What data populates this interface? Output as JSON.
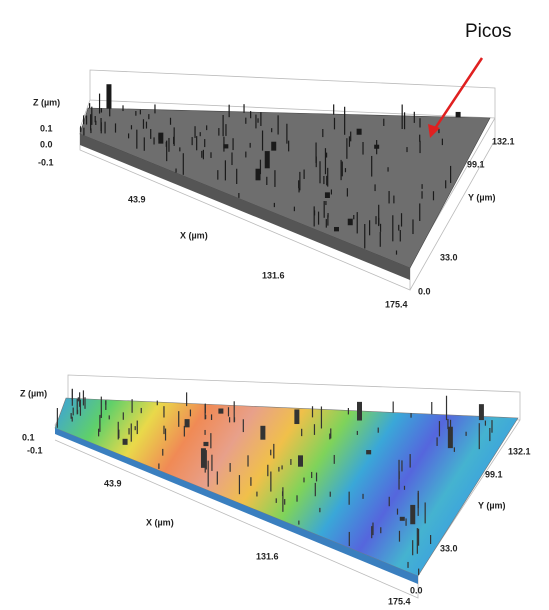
{
  "annotation": "Picos",
  "panels": [
    {
      "z_label": "Z (µm)",
      "z_ticks": [
        "0.1",
        "0.0",
        "-0.1"
      ],
      "x_label": "X (µm)",
      "x_ticks": [
        "43.9",
        "131.6",
        "175.4"
      ],
      "y_label": "Y (µm)",
      "y_ticks": [
        "0.0",
        "33.0",
        "99.1",
        "132.1"
      ]
    },
    {
      "z_label": "Z (µm)",
      "z_ticks": [
        "0.1",
        "-0.1"
      ],
      "x_label": "X (µm)",
      "x_ticks": [
        "43.9",
        "131.6",
        "175.4"
      ],
      "y_label": "Y (µm)",
      "y_ticks": [
        "0.0",
        "33.0",
        "99.1",
        "132.1"
      ]
    }
  ]
}
